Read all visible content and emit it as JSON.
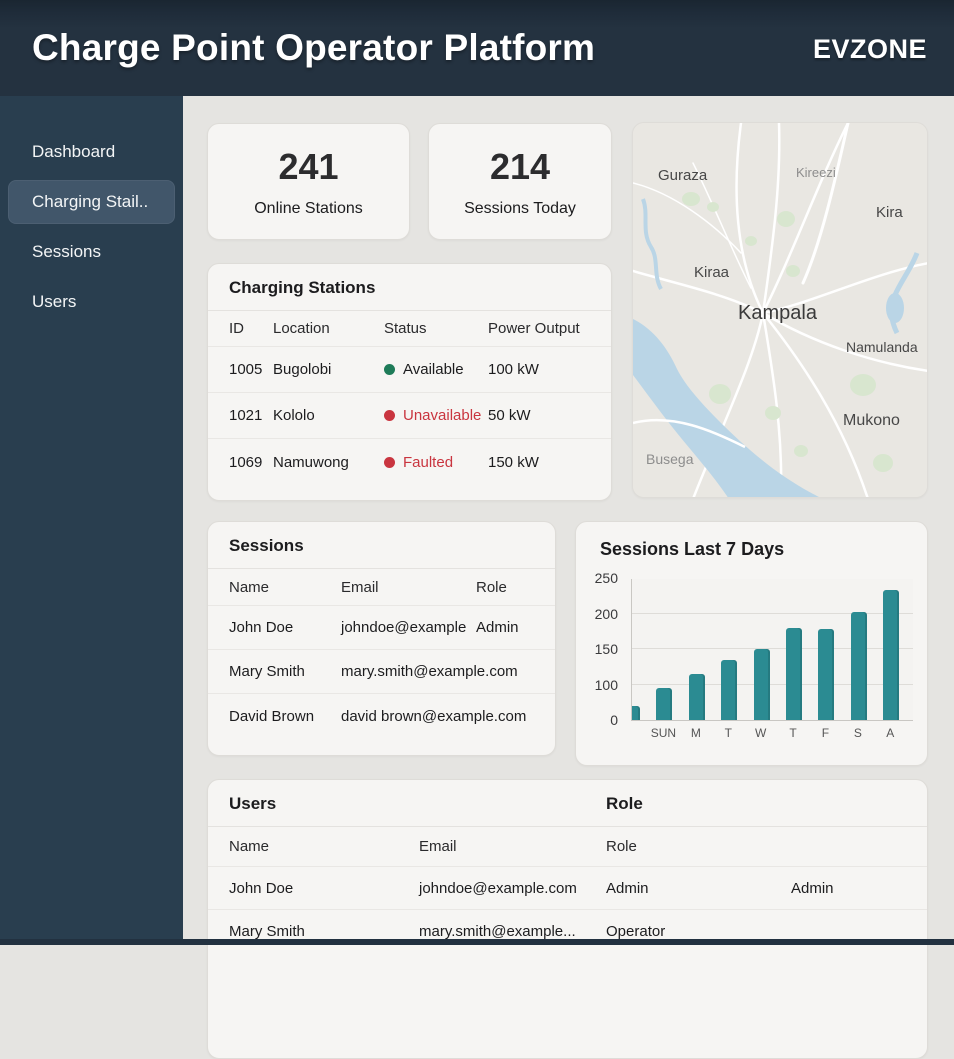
{
  "header": {
    "title": "Charge Point Operator Platform",
    "brand": "EVZONE"
  },
  "sidebar": {
    "items": [
      {
        "label": "Dashboard",
        "active": false
      },
      {
        "label": "Charging Stail..",
        "active": true
      },
      {
        "label": "Sessions",
        "active": false
      },
      {
        "label": "Users",
        "active": false
      }
    ]
  },
  "stats": [
    {
      "value": "241",
      "label": "Online Stations"
    },
    {
      "value": "214",
      "label": "Sessions Today"
    }
  ],
  "map": {
    "labels": [
      "Guraza",
      "Kireezi",
      "Kira",
      "Kiraa",
      "Kampala",
      "Namulanda",
      "Mukono",
      "Busega"
    ]
  },
  "stations": {
    "title": "Charging Stations",
    "columns": [
      "ID",
      "Location",
      "Status",
      "Power Output"
    ],
    "rows": [
      {
        "id": "1005",
        "location": "Bugolobi",
        "status": "Available",
        "power": "100 kW"
      },
      {
        "id": "1021",
        "location": "Kololo",
        "status": "Unavailable",
        "power": "50 kW"
      },
      {
        "id": "1069",
        "location": "Namuwong",
        "status": "Faulted",
        "power": "150 kW"
      }
    ]
  },
  "sessions": {
    "title": "Sessions",
    "columns": [
      "Name",
      "Email",
      "Role"
    ],
    "rows": [
      {
        "name": "John Doe",
        "email": "johndoe@example",
        "role": "Admin"
      },
      {
        "name": "Mary Smith",
        "email": "mary.smith@example.com",
        "role": ""
      },
      {
        "name": "David Brown",
        "email": "david brown@example.com",
        "role": ""
      }
    ]
  },
  "chart_data": {
    "type": "bar",
    "title": "Sessions Last 7 Days",
    "categories": [
      "",
      "SUN",
      "M",
      "T",
      "W",
      "T",
      "F",
      "S",
      "A"
    ],
    "values": [
      40,
      90,
      115,
      135,
      150,
      180,
      178,
      202,
      233
    ],
    "y_ticks": [
      0,
      100,
      150,
      200,
      250
    ],
    "ylim": [
      0,
      250
    ],
    "bar_color": "#2b8b92",
    "grid": true,
    "legend": "none"
  },
  "users": {
    "title": "Users",
    "title_role": "Role",
    "columns": [
      "Name",
      "Email",
      "Role"
    ],
    "rows": [
      {
        "name": "John Doe",
        "email": "johndoe@example.com",
        "role": "Admin",
        "role2": "Admin"
      },
      {
        "name": "Mary Smith",
        "email": "mary.smith@example...",
        "role": "Operator",
        "role2": ""
      }
    ]
  },
  "colors": {
    "header_bg": "#243240",
    "sidebar_bg": "#293e4f",
    "sidebar_active_bg": "#41566a",
    "content_bg": "#e5e4e1",
    "card_bg": "#f6f5f3",
    "status_available": "#1e7b58",
    "status_error": "#c9353f",
    "bar_teal": "#2b8b92",
    "map_water": "#bad5e6",
    "map_park": "#d8e6cf"
  }
}
